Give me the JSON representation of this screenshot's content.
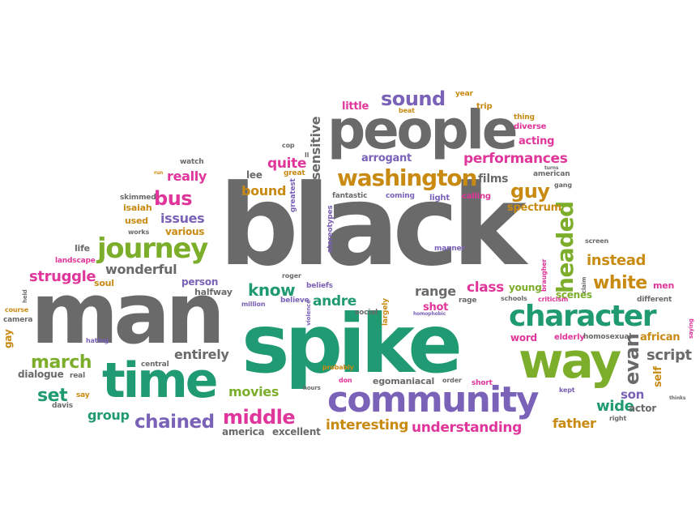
{
  "words": {
    "black": "black",
    "man": "man",
    "spike": "spike",
    "people": "people",
    "community": "community",
    "time": "time",
    "way": "way",
    "character": "character",
    "journey": "journey",
    "washington": "washington",
    "sound": "sound",
    "performances": "performances",
    "middle": "middle",
    "chained": "chained",
    "understanding": "understanding",
    "interesting": "interesting",
    "march": "march",
    "struggle": "struggle",
    "white": "white",
    "bus": "bus",
    "headed": "headed",
    "instead": "instead",
    "wonderful": "wonderful",
    "issues": "issues",
    "know": "know",
    "andre": "andre",
    "range": "range",
    "class": "class",
    "guy": "guy",
    "evan": "evan",
    "script": "script",
    "son": "son",
    "wide": "wide",
    "father": "father",
    "set": "set",
    "group": "group",
    "entirely": "entirely",
    "movies": "movies",
    "dialogue": "dialogue",
    "america": "america",
    "excellent": "excellent",
    "really": "really",
    "quite": "quite",
    "bound": "bound",
    "lee": "lee",
    "arrogant": "arrogant",
    "acting": "acting",
    "spectrum": "spectrum",
    "films": "films",
    "little": "little",
    "sensitive": "sensitive",
    "isaiah": "isaiah",
    "used": "used",
    "various": "various",
    "works": "works",
    "skimmed": "skimmed",
    "life": "life",
    "landscape": "landscape",
    "soul": "soul",
    "person": "person",
    "halfway": "halfway",
    "roger": "roger",
    "beliefs": "beliefs",
    "believe": "believe",
    "million": "million",
    "shot": "shot",
    "social": "social",
    "largely": "largely",
    "rage": "rage",
    "young": "young",
    "scenes": "scenes",
    "schools": "schools",
    "word": "word",
    "elderly": "elderly",
    "homosexual": "homosexual",
    "african": "african",
    "self": "self",
    "men": "men",
    "different": "different",
    "screen": "screen",
    "braugher": "braugher",
    "criticism": "criticism",
    "claim": "claim",
    "thing": "thing",
    "diverse": "diverse",
    "trip": "trip",
    "year": "year",
    "beat": "beat",
    "american": "american",
    "gang": "gang",
    "turns": "turns",
    "calling": "calling",
    "light": "light",
    "coming": "coming",
    "fantastic": "fantastic",
    "great": "great",
    "greatest": "greatest",
    "stereotypes": "stereotypes",
    "manner": "manner",
    "cop": "cop",
    "watch": "watch",
    "ll": "ll",
    "run": "run",
    "course": "course",
    "camera": "camera",
    "held": "held",
    "gay": "gay",
    "hating": "hating",
    "central": "central",
    "real": "real",
    "say": "say",
    "davis": "davis",
    "probably": "probably",
    "don": "don",
    "egomaniacal": "egomaniacal",
    "order": "order",
    "hours": "hours",
    "violence": "violence",
    "homophobic": "homophobic",
    "short": "short",
    "kept": "kept",
    "actor": "actor",
    "right": "right",
    "thinks": "thinks",
    "saying": "saying"
  }
}
